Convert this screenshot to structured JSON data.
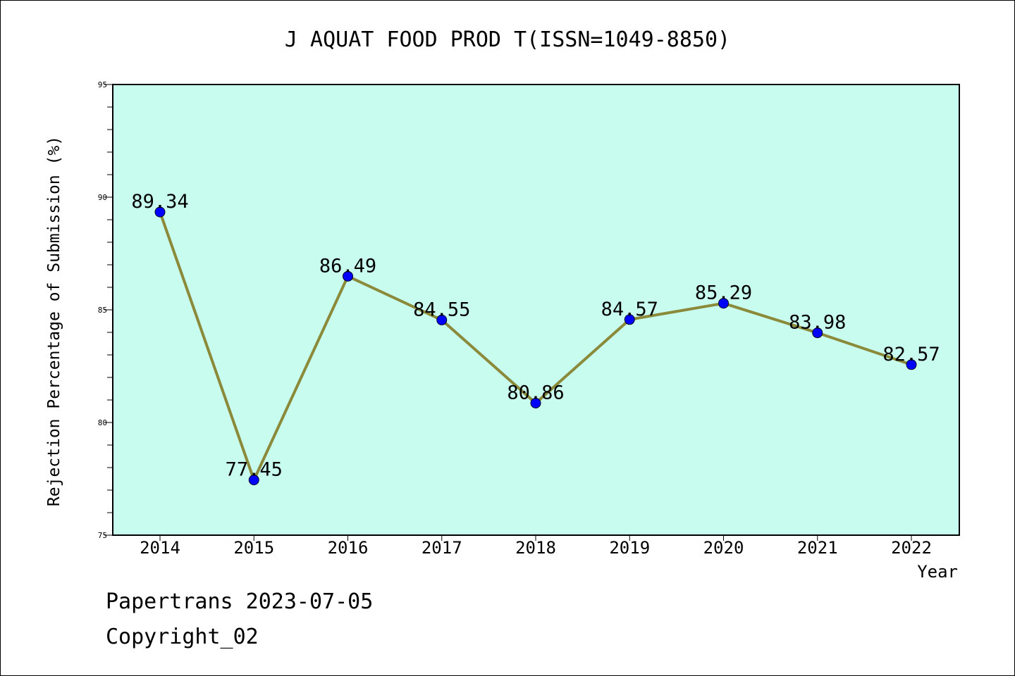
{
  "chart_data": {
    "type": "line",
    "title": "J AQUAT FOOD PROD T(ISSN=1049-8850)",
    "xlabel": "Year",
    "ylabel": "Rejection Percentage of Submission (%)",
    "categories": [
      "2014",
      "2015",
      "2016",
      "2017",
      "2018",
      "2019",
      "2020",
      "2021",
      "2022"
    ],
    "series": [
      {
        "values": [
          89.34,
          77.45,
          86.49,
          84.55,
          80.86,
          84.57,
          85.29,
          83.98,
          82.57
        ],
        "labels": [
          "89.34",
          "77.45",
          "86.49",
          "84.55",
          "80.86",
          "84.57",
          "85.29",
          "83.98",
          "82.57"
        ]
      }
    ],
    "ylim": [
      75,
      95
    ],
    "yticks": [
      "75",
      "80",
      "85",
      "90",
      "95"
    ],
    "grid": false,
    "colors": {
      "plot_background": "#c8fcee",
      "line": "#8b8a3a",
      "marker": "#0000ff"
    }
  },
  "footer": {
    "line1": "Papertrans 2023-07-05",
    "line2": "Copyright_02"
  }
}
